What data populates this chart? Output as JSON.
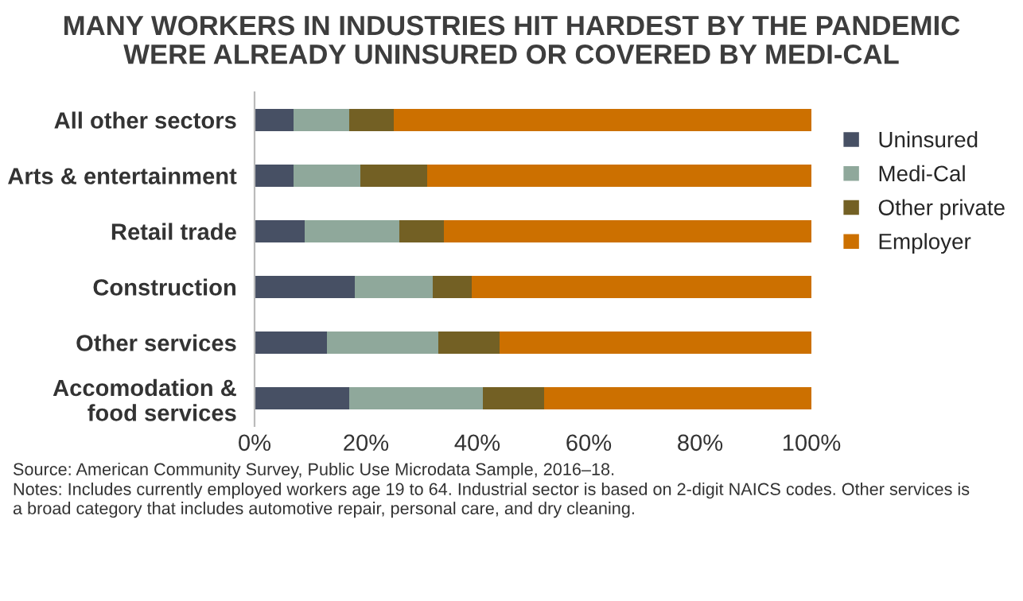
{
  "chart_data": {
    "type": "bar",
    "orientation": "horizontal",
    "stacked": true,
    "title": "MANY WORKERS IN INDUSTRIES HIT HARDEST BY THE PANDEMIC\nWERE ALREADY UNINSURED OR COVERED BY MEDI-CAL",
    "categories": [
      "All other sectors",
      "Arts & entertainment",
      "Retail trade",
      "Construction",
      "Other services",
      "Accomodation &\nfood services"
    ],
    "series": [
      {
        "name": "Uninsured",
        "color": "#475064",
        "values": [
          7,
          7,
          9,
          18,
          13,
          17
        ]
      },
      {
        "name": "Medi-Cal",
        "color": "#8fa89b",
        "values": [
          10,
          12,
          17,
          14,
          20,
          24
        ]
      },
      {
        "name": "Other private",
        "color": "#736024",
        "values": [
          8,
          12,
          8,
          7,
          11,
          11
        ]
      },
      {
        "name": "Employer",
        "color": "#cc7000",
        "values": [
          75,
          69,
          66,
          61,
          56,
          48
        ]
      }
    ],
    "xlim": [
      0,
      100
    ],
    "xticks": [
      {
        "value": 0,
        "label": "0%"
      },
      {
        "value": 20,
        "label": "20%"
      },
      {
        "value": 40,
        "label": "40%"
      },
      {
        "value": 60,
        "label": "60%"
      },
      {
        "value": 80,
        "label": "80%"
      },
      {
        "value": 100,
        "label": "100%"
      }
    ],
    "grid": false,
    "legend": "right",
    "annotations": [
      "Source: American Community Survey, Public Use Microdata Sample, 2016–18.",
      "Notes: Includes currently employed workers age 19 to 64. Industrial sector is based on 2-digit NAICS codes. Other services is\na broad category that includes automotive repair, personal care, and dry cleaning."
    ]
  }
}
